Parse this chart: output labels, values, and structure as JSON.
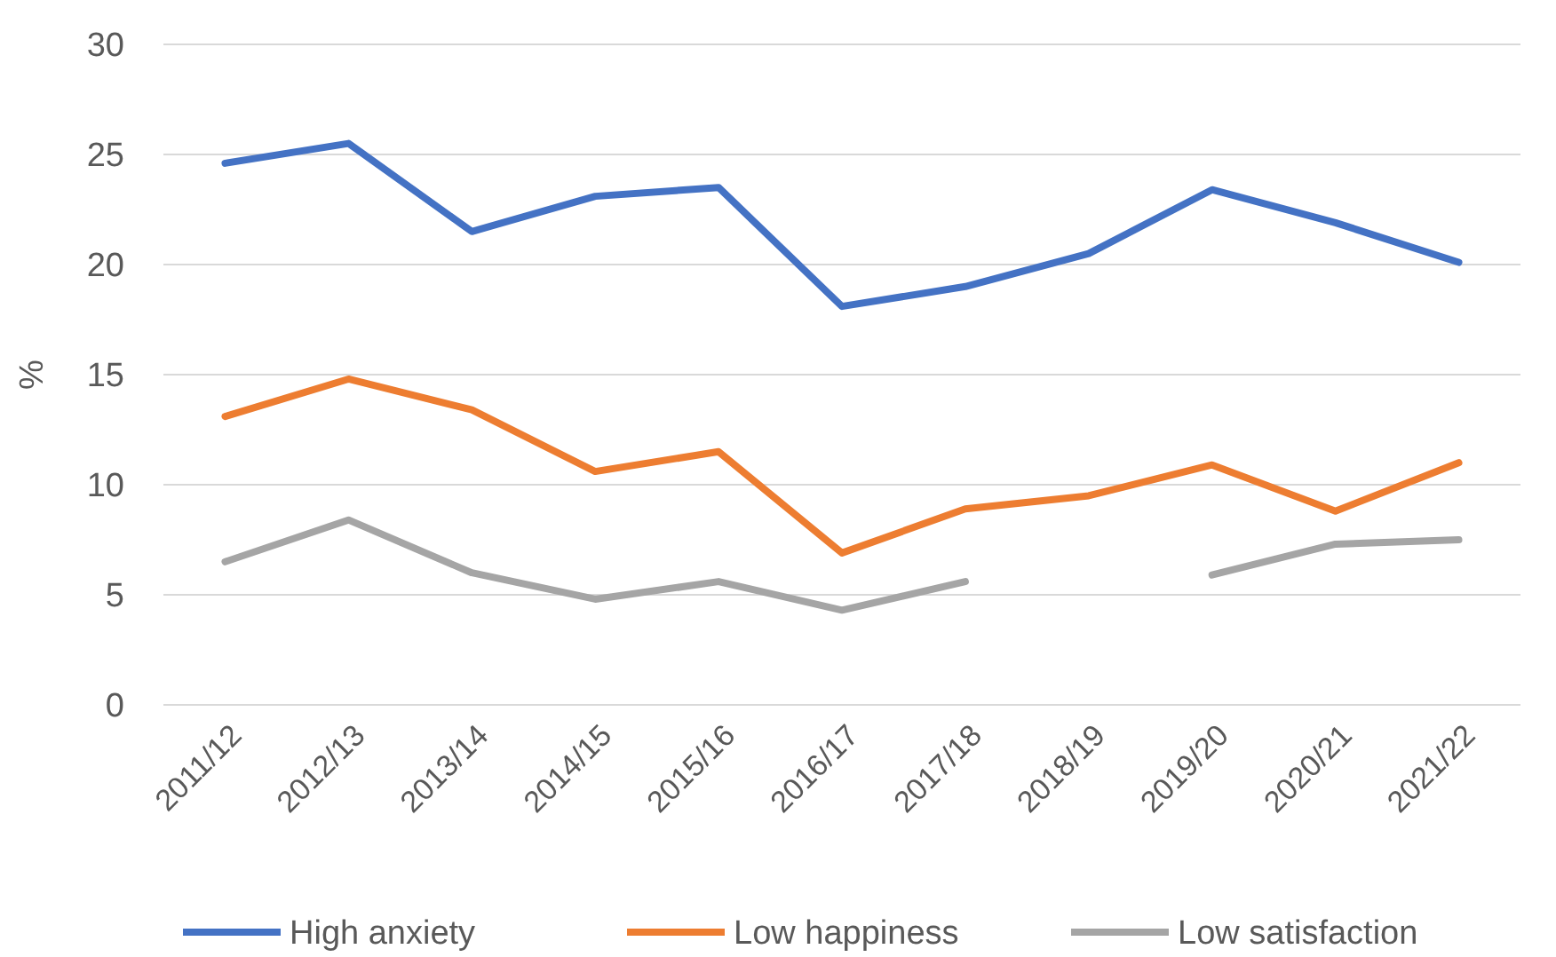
{
  "chart_data": {
    "type": "line",
    "ylabel": "%",
    "categories": [
      "2011/12",
      "2012/13",
      "2013/14",
      "2014/15",
      "2015/16",
      "2016/17",
      "2017/18",
      "2018/19",
      "2019/20",
      "2020/21",
      "2021/22"
    ],
    "series": [
      {
        "name": "High anxiety",
        "color": "#4472c4",
        "values": [
          24.6,
          25.5,
          21.5,
          23.1,
          23.5,
          18.1,
          19.0,
          20.5,
          23.4,
          21.9,
          20.1
        ]
      },
      {
        "name": "Low happiness",
        "color": "#ed7d31",
        "values": [
          13.1,
          14.8,
          13.4,
          10.6,
          11.5,
          6.9,
          8.9,
          9.5,
          10.9,
          8.8,
          11.0
        ]
      },
      {
        "name": "Low satisfaction",
        "color": "#a5a5a5",
        "values": [
          6.5,
          8.4,
          6.0,
          4.8,
          5.6,
          4.3,
          5.6,
          null,
          5.9,
          7.3,
          7.5
        ]
      }
    ],
    "ylim": [
      0,
      30
    ],
    "yticks": [
      0,
      5,
      10,
      15,
      20,
      25,
      30
    ],
    "grid": "y",
    "legend": "bottom",
    "marker": "none",
    "line_style": "solid"
  }
}
